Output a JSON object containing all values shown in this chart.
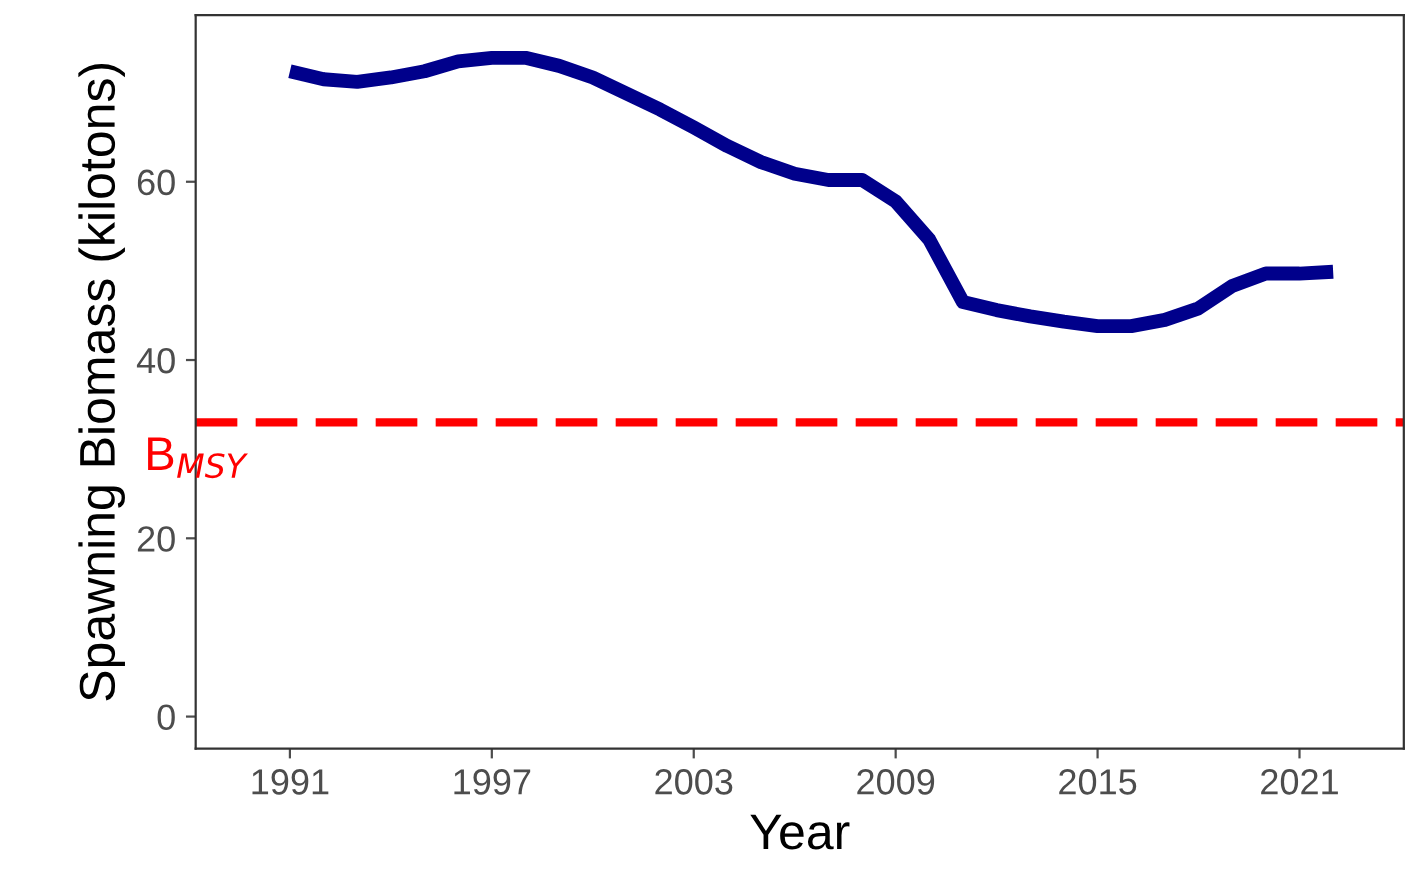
{
  "chart_data": {
    "type": "line",
    "xlabel": "Year",
    "ylabel": "Spawning Biomass (kilotons)",
    "x": [
      1991,
      1992,
      1993,
      1994,
      1995,
      1996,
      1997,
      1998,
      1999,
      2000,
      2001,
      2002,
      2003,
      2004,
      2005,
      2006,
      2007,
      2008,
      2009,
      2010,
      2011,
      2012,
      2013,
      2014,
      2015,
      2016,
      2017,
      2018,
      2019,
      2020,
      2021,
      2022
    ],
    "series": [
      {
        "color": "#00008b",
        "values": [
          72.4,
          71.5,
          71.2,
          71.7,
          72.4,
          73.5,
          73.9,
          73.9,
          73.0,
          71.7,
          69.9,
          68.1,
          66.1,
          64.0,
          62.2,
          60.9,
          60.2,
          60.2,
          57.8,
          53.5,
          46.5,
          45.6,
          44.9,
          44.3,
          43.8,
          43.8,
          44.5,
          45.8,
          48.3,
          49.7,
          49.7,
          49.9
        ]
      }
    ],
    "xlim": [
      1988.2,
      2024.1
    ],
    "ylim": [
      -3.6,
      78.7
    ],
    "xticks": [
      1991,
      1997,
      2003,
      2009,
      2015,
      2021
    ],
    "yticks": [
      0,
      20,
      40,
      60
    ],
    "ref_lines": [
      {
        "axis": "y",
        "value": 33,
        "label": "B$_{MSY}$",
        "color": "#ff0000",
        "line_style": "dashed"
      }
    ],
    "grid": false,
    "legend": false,
    "marker": "none",
    "line_style": "solid"
  }
}
